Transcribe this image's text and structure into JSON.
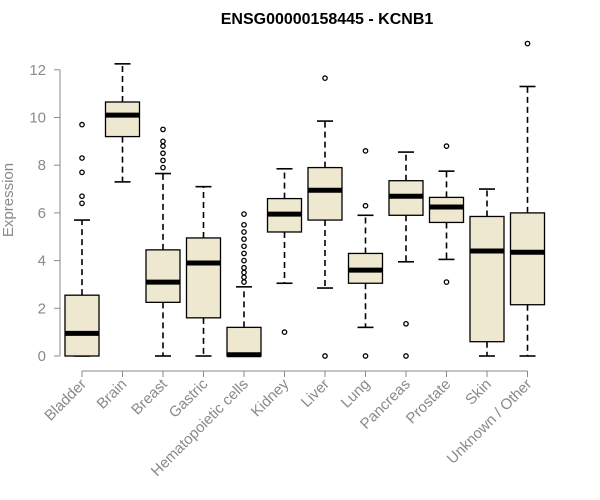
{
  "chart_data": {
    "type": "box",
    "title": "ENSG00000158445 - KCNB1",
    "xlabel": "",
    "ylabel": "Expression",
    "ylim": [
      0,
      13
    ],
    "yticks": [
      0,
      2,
      4,
      6,
      8,
      10,
      12
    ],
    "grid": false,
    "colors": {
      "box_fill": "#efe8d0",
      "stroke": "#000000",
      "axis": "#8a8a8a"
    },
    "categories": [
      "Bladder",
      "Brain",
      "Breast",
      "Gastric",
      "Hematopoietic cells",
      "Kidney",
      "Liver",
      "Lung",
      "Pancreas",
      "Prostate",
      "Skin",
      "Unknown / Other"
    ],
    "boxes": [
      {
        "label": "Bladder",
        "whisker_low": 0.0,
        "q1": 0.0,
        "median": 0.95,
        "q3": 2.55,
        "whisker_high": 5.7,
        "outliers": [
          6.4,
          6.7,
          7.7,
          8.3,
          9.7
        ]
      },
      {
        "label": "Brain",
        "whisker_low": 7.3,
        "q1": 9.2,
        "median": 10.1,
        "q3": 10.65,
        "whisker_high": 12.25,
        "outliers": []
      },
      {
        "label": "Breast",
        "whisker_low": 0.0,
        "q1": 2.25,
        "median": 3.1,
        "q3": 4.45,
        "whisker_high": 7.65,
        "outliers": [
          7.9,
          8.2,
          8.5,
          8.8,
          9.0,
          9.5
        ]
      },
      {
        "label": "Gastric",
        "whisker_low": 0.0,
        "q1": 1.6,
        "median": 3.9,
        "q3": 4.95,
        "whisker_high": 7.1,
        "outliers": []
      },
      {
        "label": "Hematopoietic cells",
        "whisker_low": 0.0,
        "q1": 0.0,
        "median": 0.05,
        "q3": 1.2,
        "whisker_high": 2.9,
        "outliers": [
          3.1,
          3.3,
          3.5,
          3.7,
          4.0,
          4.3,
          4.6,
          4.9,
          5.2,
          5.5,
          5.95
        ]
      },
      {
        "label": "Kidney",
        "whisker_low": 3.05,
        "q1": 5.2,
        "median": 5.95,
        "q3": 6.6,
        "whisker_high": 7.85,
        "outliers": [
          1.0
        ]
      },
      {
        "label": "Liver",
        "whisker_low": 2.85,
        "q1": 5.7,
        "median": 6.95,
        "q3": 7.9,
        "whisker_high": 9.85,
        "outliers": [
          0.0,
          11.65
        ]
      },
      {
        "label": "Lung",
        "whisker_low": 1.2,
        "q1": 3.05,
        "median": 3.6,
        "q3": 4.3,
        "whisker_high": 5.9,
        "outliers": [
          0.0,
          6.3,
          8.6
        ]
      },
      {
        "label": "Pancreas",
        "whisker_low": 3.95,
        "q1": 5.9,
        "median": 6.7,
        "q3": 7.35,
        "whisker_high": 8.55,
        "outliers": [
          0.0,
          1.35
        ]
      },
      {
        "label": "Prostate",
        "whisker_low": 4.05,
        "q1": 5.6,
        "median": 6.25,
        "q3": 6.65,
        "whisker_high": 7.75,
        "outliers": [
          3.1,
          8.8
        ]
      },
      {
        "label": "Skin",
        "whisker_low": 0.0,
        "q1": 0.6,
        "median": 4.4,
        "q3": 5.85,
        "whisker_high": 7.0,
        "outliers": []
      },
      {
        "label": "Unknown / Other",
        "whisker_low": 0.0,
        "q1": 2.15,
        "median": 4.35,
        "q3": 6.0,
        "whisker_high": 11.3,
        "outliers": [
          13.1
        ]
      }
    ]
  }
}
